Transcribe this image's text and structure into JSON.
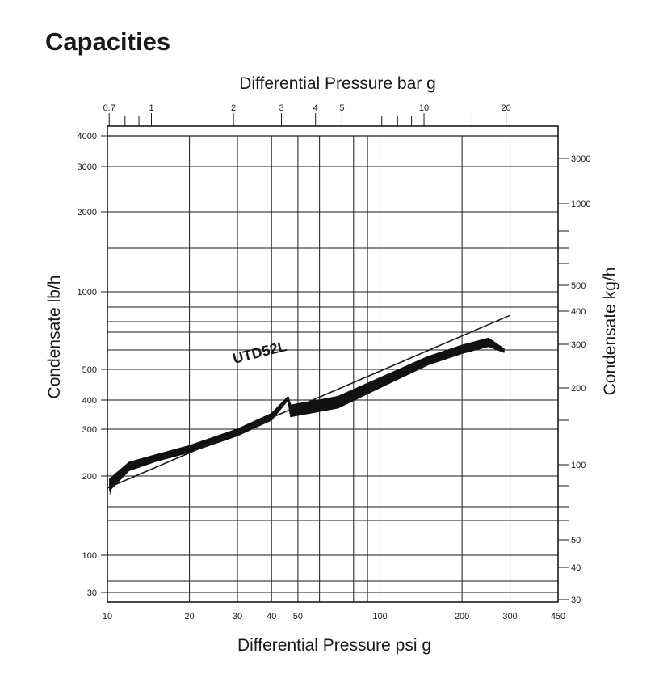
{
  "page": {
    "title": "Capacities"
  },
  "chart_data": {
    "type": "line",
    "series": [
      {
        "name": "UTD52L",
        "style": "thick band",
        "x_psi_g": [
          10.2,
          12,
          15,
          20,
          30,
          40,
          46,
          47,
          50,
          70,
          100,
          150,
          200,
          250,
          285
        ],
        "y_lb_h": [
          195,
          225,
          240,
          260,
          300,
          350,
          410,
          380,
          385,
          410,
          470,
          560,
          620,
          660,
          600
        ]
      },
      {
        "name": "",
        "style": "thin line",
        "x_psi_g": [
          10,
          300
        ],
        "y_lb_h": [
          180,
          810
        ]
      }
    ],
    "axes": {
      "x_bottom": {
        "label": "Differential Pressure psi g",
        "scale": "log",
        "range": [
          10,
          450
        ],
        "ticks": [
          10,
          20,
          30,
          40,
          50,
          100,
          200,
          300,
          450
        ],
        "gridlines": [
          20,
          30,
          40,
          50,
          60,
          80,
          90,
          100,
          200,
          300
        ]
      },
      "x_top": {
        "label": "Differential Pressure bar g",
        "scale": "log",
        "range": [
          0.7,
          31
        ],
        "ticks": [
          0.7,
          1,
          2,
          3,
          4,
          5,
          10,
          20
        ],
        "minor_ticks": [
          0.8,
          0.9,
          7,
          8,
          9,
          15
        ]
      },
      "y_left": {
        "label": "Condensate lb/h",
        "ticks": [
          30,
          100,
          200,
          300,
          400,
          500,
          1000,
          2000,
          3000,
          4000
        ]
      },
      "y_right": {
        "label": "Condensate kg/h",
        "ticks": [
          30,
          40,
          50,
          100,
          200,
          300,
          400,
          500,
          1000,
          3000
        ]
      }
    },
    "grid": true
  }
}
